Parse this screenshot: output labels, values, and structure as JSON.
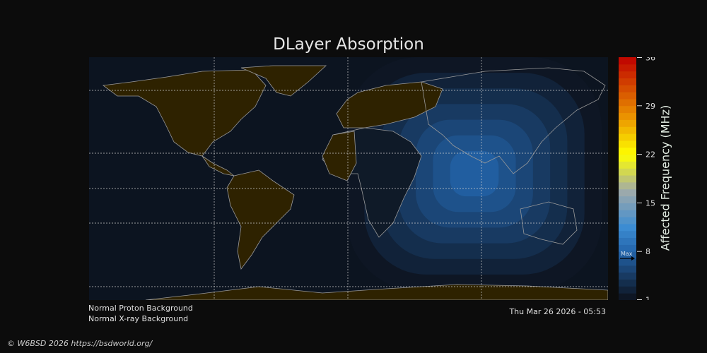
{
  "title": "DLayer Absorption",
  "colorbar": {
    "label": "Affected Frequency (MHz)",
    "min": 1,
    "max": 36,
    "ticks": [
      "36",
      "29",
      "22",
      "15",
      "8",
      "1"
    ],
    "max_marker_label": "Max",
    "max_marker_value": 7
  },
  "status": {
    "proton": "Normal Proton Background",
    "xray": "Normal X-ray Background",
    "timestamp": "Thu Mar 26 2026 - 05:53"
  },
  "footer": "© W6BSD 2026 https://bsdworld.org/",
  "colors": {
    "ocean": "#0c1420",
    "land": "#2e2200",
    "coast": "#9a9a9a",
    "absorption_peak": "#2a7fcf"
  }
}
